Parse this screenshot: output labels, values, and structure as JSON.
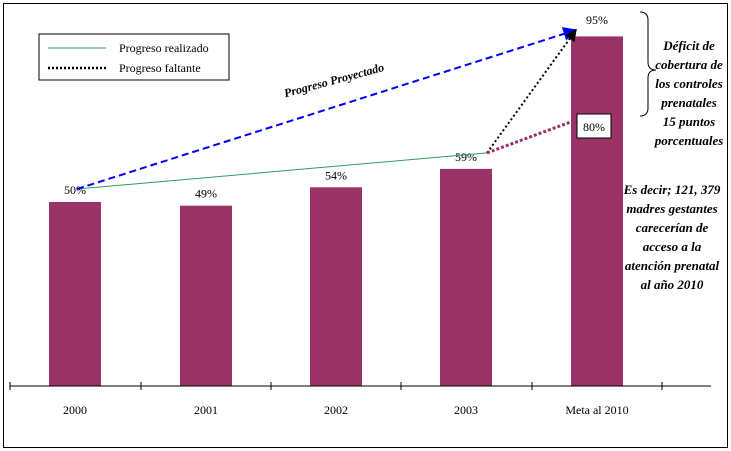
{
  "chart_data": {
    "type": "bar",
    "categories": [
      "2000",
      "2001",
      "2002",
      "2003",
      "Meta al 2010"
    ],
    "values": [
      50,
      49,
      54,
      59,
      95
    ],
    "value_labels": [
      "50%",
      "49%",
      "54%",
      "59%",
      "95%"
    ],
    "ylim": [
      0,
      100
    ],
    "bar_color": "#993366",
    "projection_value": 80,
    "projection_label": "80%",
    "legend": [
      {
        "name": "Progreso realizado",
        "color": "#339966",
        "style": "solid"
      },
      {
        "name": "Progreso faltante",
        "color": "#000000",
        "style": "dotted"
      }
    ],
    "arrow_label": "Progreso Proyectado",
    "colors": {
      "projected": "#0000ff",
      "deficit": "#993366"
    }
  },
  "annotations": {
    "deficit_text": [
      "Déficit  de",
      "cobertura de",
      "los controles",
      "prenatales",
      "15 puntos",
      "porcentuales"
    ],
    "impact_text": [
      "Es decir; 121, 379",
      "madres gestantes",
      "carecerían de",
      "acceso a la",
      "atención prenatal",
      "al año 2010"
    ]
  }
}
